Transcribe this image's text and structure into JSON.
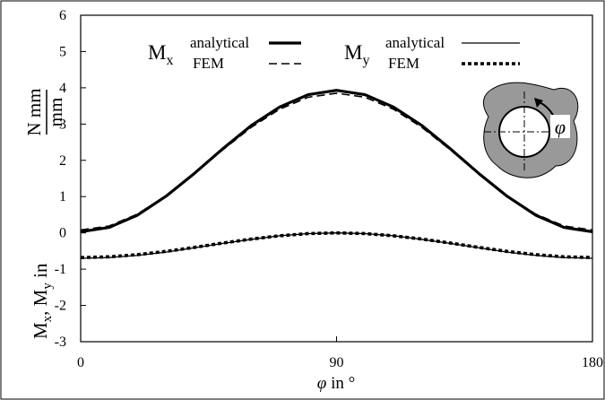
{
  "chart_data": {
    "type": "line",
    "x": [
      0,
      10,
      20,
      30,
      40,
      50,
      60,
      70,
      80,
      90,
      100,
      110,
      120,
      130,
      140,
      150,
      160,
      170,
      180
    ],
    "series": [
      {
        "name": "analytical",
        "group": 0,
        "color": "#000000",
        "linewidth": 3.2,
        "dash": "none",
        "values": [
          0.03,
          0.15,
          0.49,
          1.01,
          1.64,
          2.32,
          2.96,
          3.47,
          3.81,
          3.93,
          3.81,
          3.47,
          2.96,
          2.32,
          1.64,
          1.01,
          0.49,
          0.15,
          0.03
        ]
      },
      {
        "name": "FEM",
        "group": 0,
        "color": "#000000",
        "linewidth": 1.6,
        "dash": "9 5",
        "values": [
          0.08,
          0.19,
          0.52,
          1.02,
          1.64,
          2.29,
          2.91,
          3.41,
          3.74,
          3.85,
          3.74,
          3.41,
          2.91,
          2.29,
          1.64,
          1.02,
          0.52,
          0.19,
          0.08
        ]
      },
      {
        "name": "analytical",
        "group": 1,
        "color": "#000000",
        "linewidth": 1.3,
        "dash": "none",
        "values": [
          -0.7,
          -0.68,
          -0.62,
          -0.53,
          -0.41,
          -0.29,
          -0.18,
          -0.08,
          -0.02,
          0,
          -0.02,
          -0.08,
          -0.18,
          -0.29,
          -0.41,
          -0.53,
          -0.62,
          -0.68,
          -0.7
        ]
      },
      {
        "name": "FEM",
        "group": 1,
        "color": "#000000",
        "linewidth": 3.6,
        "dash": "4 3",
        "values": [
          -0.68,
          -0.66,
          -0.6,
          -0.51,
          -0.4,
          -0.28,
          -0.17,
          -0.08,
          -0.02,
          0,
          -0.02,
          -0.08,
          -0.17,
          -0.28,
          -0.4,
          -0.51,
          -0.6,
          -0.66,
          -0.68
        ]
      }
    ],
    "legend_groups": [
      {
        "symbol": "M",
        "subscript": "x"
      },
      {
        "symbol": "M",
        "subscript": "y"
      }
    ],
    "xlabel": {
      "symbol": "φ",
      "text": "in °"
    },
    "ylabel": {
      "parts": [
        "M",
        "x",
        ", M",
        "y",
        " in "
      ],
      "numerator": "N mm",
      "denominator": "mm"
    },
    "inset_label": "φ",
    "xlim": [
      0,
      180
    ],
    "xticks": [
      0,
      90,
      180
    ],
    "ylim": [
      -3,
      6
    ],
    "yticks": [
      -3,
      -2,
      -1,
      0,
      1,
      2,
      3,
      4,
      5,
      6
    ]
  }
}
